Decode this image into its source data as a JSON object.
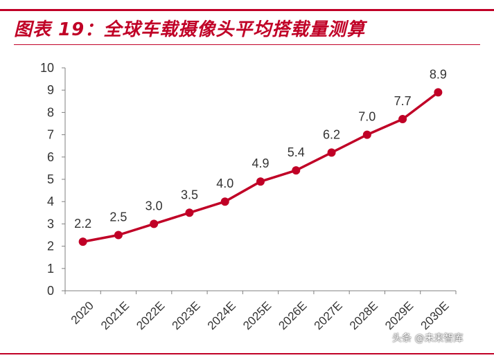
{
  "page": {
    "title": "图表 19：全球车载摄像头平均搭载量测算",
    "watermark": "头条 @未来智库"
  },
  "chart_data": {
    "type": "line",
    "categories": [
      "2020",
      "2021E",
      "2022E",
      "2023E",
      "2024E",
      "2025E",
      "2026E",
      "2027E",
      "2028E",
      "2029E",
      "2030E"
    ],
    "series": [
      {
        "values": [
          2.2,
          2.5,
          3.0,
          3.5,
          4.0,
          4.9,
          5.4,
          6.2,
          7.0,
          7.7,
          8.9
        ]
      }
    ],
    "data_labels": [
      "2.2",
      "2.5",
      "3.0",
      "3.5",
      "4.0",
      "4.9",
      "5.4",
      "6.2",
      "7.0",
      "7.7",
      "8.9"
    ],
    "ylim": [
      0,
      10
    ],
    "yticks": [
      0,
      1,
      2,
      3,
      4,
      5,
      6,
      7,
      8,
      9,
      10
    ],
    "title": "",
    "xlabel": "",
    "ylabel": "",
    "grid": false,
    "legend": "none",
    "colors": {
      "line": "#c00026",
      "axis": "#7f7f7f",
      "text": "#333333"
    }
  }
}
